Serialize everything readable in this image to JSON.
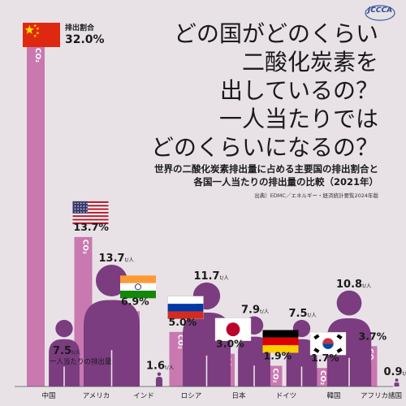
{
  "logo": "JCCCA",
  "title_lines": [
    "どの国がどのくらい",
    "二酸化炭素を",
    "出しているの？",
    "一人当たりでは",
    "どのくらいになるの？"
  ],
  "subtitle_lines": [
    "世界の二酸化炭素排出量に占める主要国の排出割合と",
    "各国一人当たりの排出量の比較（2021年）"
  ],
  "source": "出典）EDMC／エネルギー・経済統計要覧2024年版",
  "share_caption": "排出割合",
  "per_capita_caption": "一人当たりの排出量",
  "co2_label": "CO₂",
  "per_capita_unit": "t/人",
  "colors": {
    "background": "#e8e2e7",
    "share_bar": "#c978b0",
    "person": "#7b3c80",
    "text": "#1a1a1a",
    "baseline": "#555555"
  },
  "chart_data": {
    "type": "bar",
    "year": "2021",
    "categories": [
      "中国",
      "アメリカ",
      "インド",
      "ロシア",
      "日本",
      "ドイツ",
      "韓国",
      "アフリカ諸国"
    ],
    "series": [
      {
        "name": "排出割合",
        "unit": "%",
        "values": [
          32.0,
          13.7,
          6.9,
          5.0,
          3.0,
          1.9,
          1.7,
          3.7
        ]
      },
      {
        "name": "一人当たりの排出量",
        "unit": "t/人",
        "values": [
          7.5,
          13.7,
          1.6,
          11.7,
          7.9,
          7.5,
          10.8,
          0.9
        ]
      }
    ],
    "flags": [
      "china-flag",
      "usa-flag",
      "india-flag",
      "russia-flag",
      "japan-flag",
      "germany-flag",
      "south-korea-flag",
      null
    ]
  }
}
